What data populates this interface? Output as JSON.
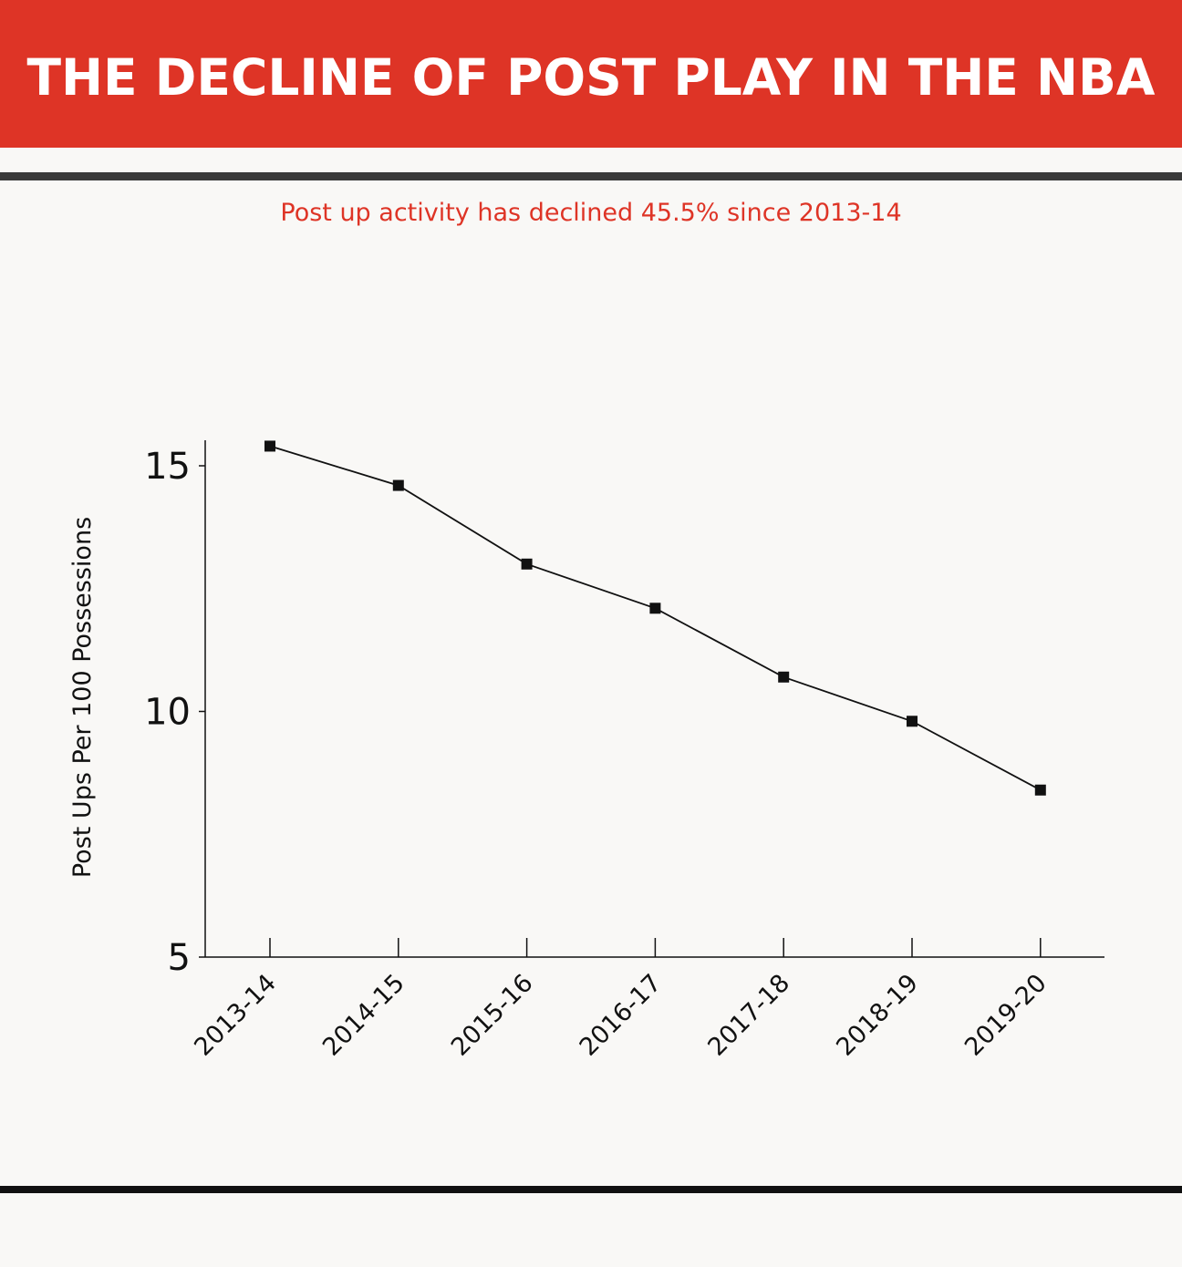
{
  "header": {
    "title": "THE DECLINE OF POST PLAY IN THE NBA",
    "subtitle": "Post up activity has declined 45.5% since 2013-14"
  },
  "colors": {
    "banner": "#de3426",
    "subtitle": "#de3426",
    "line": "#111111",
    "background": "#f9f8f6"
  },
  "chart_data": {
    "type": "line",
    "title": "",
    "xlabel": "",
    "ylabel": "Post Ups Per 100 Possessions",
    "categories": [
      "2013-14",
      "2014-15",
      "2015-16",
      "2016-17",
      "2017-18",
      "2018-19",
      "2019-20"
    ],
    "series": [
      {
        "values": [
          15.4,
          14.6,
          13.0,
          12.1,
          10.7,
          9.8,
          8.4
        ],
        "marker": "square"
      }
    ],
    "ylim": [
      5,
      15.5
    ],
    "yticks": [
      "5",
      "10",
      "15"
    ],
    "grid": false,
    "legend": "none"
  }
}
